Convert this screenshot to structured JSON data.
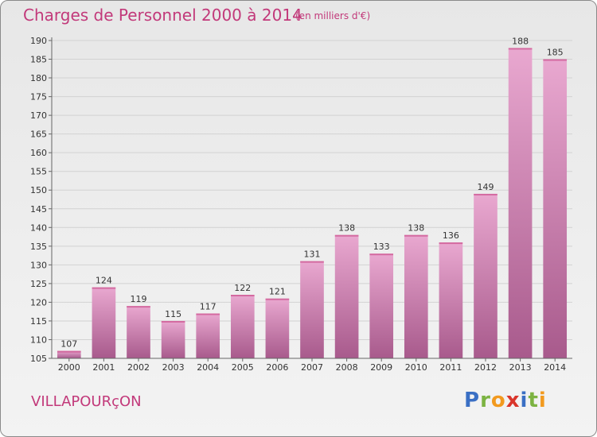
{
  "title": "Charges de Personnel 2000 à 2014",
  "subtitle": "(en milliers d'€)",
  "commune": "VILLAPOURçON",
  "logo": {
    "letters": [
      "P",
      "r",
      "o",
      "x",
      "i",
      "t",
      "i"
    ],
    "colors": [
      "#3a6fc4",
      "#7cb342",
      "#f29a1f",
      "#d9352b",
      "#3a6fc4",
      "#7cb342",
      "#f29a1f"
    ]
  },
  "colors": {
    "accent": "#c2397a",
    "bar_top": "#e9a8d0",
    "bar_bottom": "#a85a8c"
  },
  "chart_data": {
    "type": "bar",
    "categories": [
      "2000",
      "2001",
      "2002",
      "2003",
      "2004",
      "2005",
      "2006",
      "2007",
      "2008",
      "2009",
      "2010",
      "2011",
      "2012",
      "2013",
      "2014"
    ],
    "values": [
      107,
      124,
      119,
      115,
      117,
      122,
      121,
      131,
      138,
      133,
      138,
      136,
      149,
      188,
      185
    ],
    "ylim": [
      105,
      190
    ],
    "yticks": [
      105,
      110,
      115,
      120,
      125,
      130,
      135,
      140,
      145,
      150,
      155,
      160,
      165,
      170,
      175,
      180,
      185,
      190
    ],
    "grid": true
  }
}
